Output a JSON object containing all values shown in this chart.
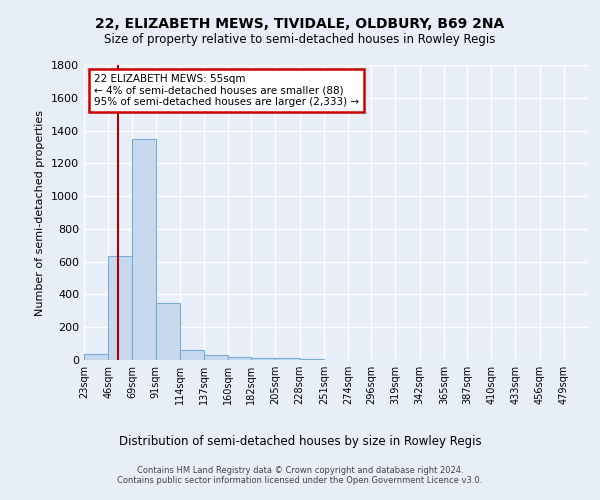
{
  "title": "22, ELIZABETH MEWS, TIVIDALE, OLDBURY, B69 2NA",
  "subtitle": "Size of property relative to semi-detached houses in Rowley Regis",
  "xlabel": "Distribution of semi-detached houses by size in Rowley Regis",
  "ylabel": "Number of semi-detached properties",
  "bar_color": "#c8d9ee",
  "bar_edge_color": "#7aadd4",
  "background_color": "#e8eef8",
  "grid_color": "#ffffff",
  "bin_edges": [
    23,
    46,
    69,
    91,
    114,
    137,
    160,
    182,
    205,
    228,
    251,
    274,
    296,
    319,
    342,
    365,
    387,
    410,
    433,
    456,
    479
  ],
  "bin_labels": [
    "23sqm",
    "46sqm",
    "69sqm",
    "91sqm",
    "114sqm",
    "137sqm",
    "160sqm",
    "182sqm",
    "205sqm",
    "228sqm",
    "251sqm",
    "274sqm",
    "296sqm",
    "319sqm",
    "342sqm",
    "365sqm",
    "387sqm",
    "410sqm",
    "433sqm",
    "456sqm",
    "479sqm"
  ],
  "counts": [
    35,
    635,
    1350,
    345,
    60,
    30,
    20,
    15,
    10,
    5,
    2,
    1,
    0,
    0,
    0,
    0,
    0,
    0,
    0,
    0
  ],
  "ylim": [
    0,
    1800
  ],
  "yticks": [
    0,
    200,
    400,
    600,
    800,
    1000,
    1200,
    1400,
    1600,
    1800
  ],
  "property_size": 55,
  "property_line_color": "#aa0000",
  "annotation_text": "22 ELIZABETH MEWS: 55sqm\n← 4% of semi-detached houses are smaller (88)\n95% of semi-detached houses are larger (2,333) →",
  "annotation_box_color": "#ffffff",
  "annotation_border_color": "#cc0000",
  "footer_line1": "Contains HM Land Registry data © Crown copyright and database right 2024.",
  "footer_line2": "Contains public sector information licensed under the Open Government Licence v3.0."
}
